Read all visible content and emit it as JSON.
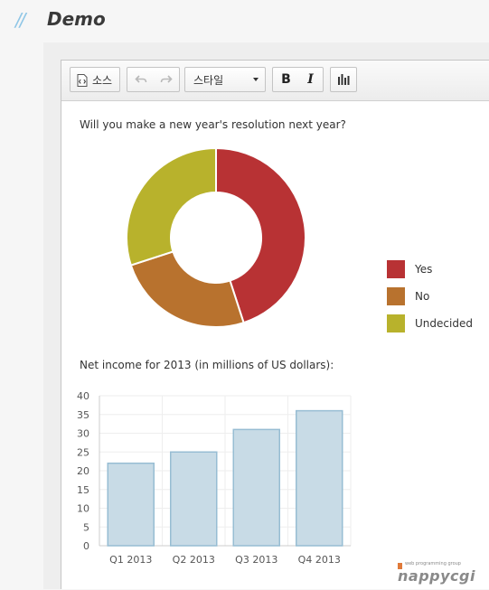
{
  "header": {
    "slashes": "//",
    "title": "Demo"
  },
  "toolbar": {
    "source_label": "소스",
    "style_label": "스타일",
    "bold_label": "B",
    "italic_label": "I"
  },
  "content": {
    "question": "Will you make a new year's resolution next year?",
    "income_title": "Net income for 2013 (in millions of US dollars):"
  },
  "watermark": {
    "small": "web programming group",
    "big": "nappycgi"
  },
  "colors": {
    "yes": "#b83234",
    "no": "#b8722e",
    "undecided": "#b8b22c",
    "bar_fill": "#c8dbe6",
    "bar_stroke": "#97bdd3"
  },
  "chart_data": [
    {
      "type": "pie",
      "donut": true,
      "title": "",
      "categories": [
        "Yes",
        "No",
        "Undecided"
      ],
      "values": [
        45,
        25,
        30
      ],
      "colors": [
        "#b83234",
        "#b8722e",
        "#b8b22c"
      ],
      "legend": "right"
    },
    {
      "type": "bar",
      "title": "",
      "categories": [
        "Q1 2013",
        "Q2 2013",
        "Q3 2013",
        "Q4 2013"
      ],
      "values": [
        22,
        25,
        31,
        36
      ],
      "ylim": [
        0,
        40
      ],
      "yticks": [
        0,
        5,
        10,
        15,
        20,
        25,
        30,
        35,
        40
      ],
      "grid": true,
      "xlabel": "",
      "ylabel": ""
    }
  ]
}
